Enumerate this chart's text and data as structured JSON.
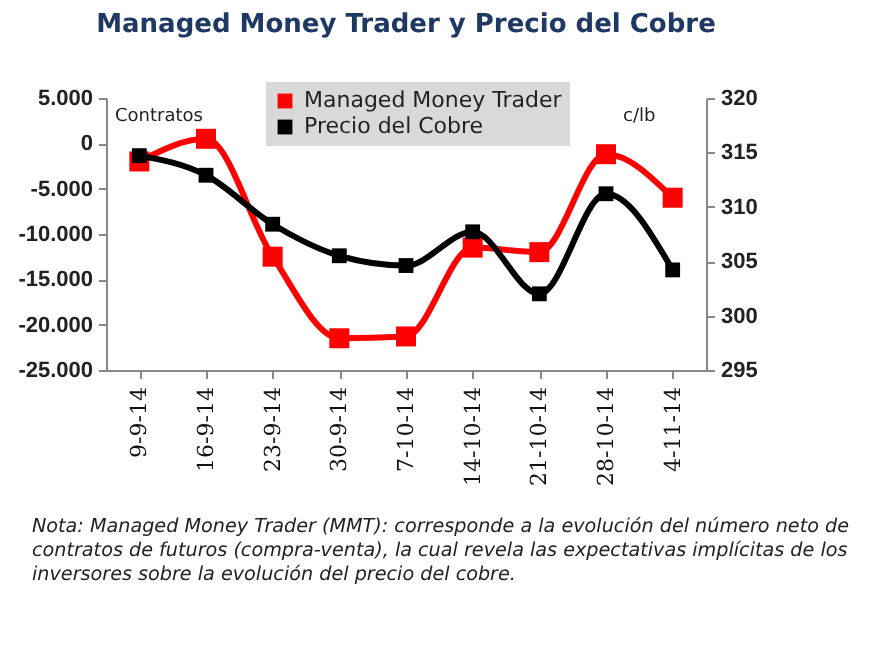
{
  "chart_data": {
    "type": "line",
    "title": "Managed Money Trader y Precio del Cobre",
    "ylabel": "Contratos",
    "y2label": "c/lb",
    "categories": [
      "9-9-14",
      "16-9-14",
      "23-9-14",
      "30-9-14",
      "7-10-14",
      "14-10-14",
      "21-10-14",
      "28-10-14",
      "4-11-14"
    ],
    "series": [
      {
        "name": "Managed Money Trader",
        "color": "#ff0000",
        "values": [
          -2000,
          500,
          -12500,
          -21500,
          -21300,
          -11500,
          -12000,
          -1200,
          -6000
        ]
      },
      {
        "name": "Precio del Cobre",
        "color": "#000000",
        "axis": "y2",
        "values": [
          314.7,
          312.9,
          308.4,
          305.5,
          304.6,
          307.7,
          302.0,
          311.2,
          304.2
        ]
      }
    ],
    "ylim": [
      -25000,
      5000
    ],
    "yticks": [
      {
        "value": -25000,
        "label": "-25.000"
      },
      {
        "value": -20000,
        "label": "-20.000"
      },
      {
        "value": -15000,
        "label": "-15.000"
      },
      {
        "value": -10000,
        "label": "-10.000"
      },
      {
        "value": -5000,
        "label": "-5.000"
      },
      0,
      {
        "value": 5000,
        "label": "5.000"
      }
    ],
    "y2lim": [
      295,
      320
    ],
    "y2ticks": [
      295,
      300,
      305,
      310,
      315,
      320
    ],
    "marker": "square",
    "grid": false,
    "legend": "top",
    "annotations": [
      "Nota: Managed Money Trader (MMT): corresponde a la evolución del número neto de contratos de futuros (compra-venta), la cual revela las expectativas implícitas de los inversores sobre la evolución del precio del cobre."
    ]
  }
}
